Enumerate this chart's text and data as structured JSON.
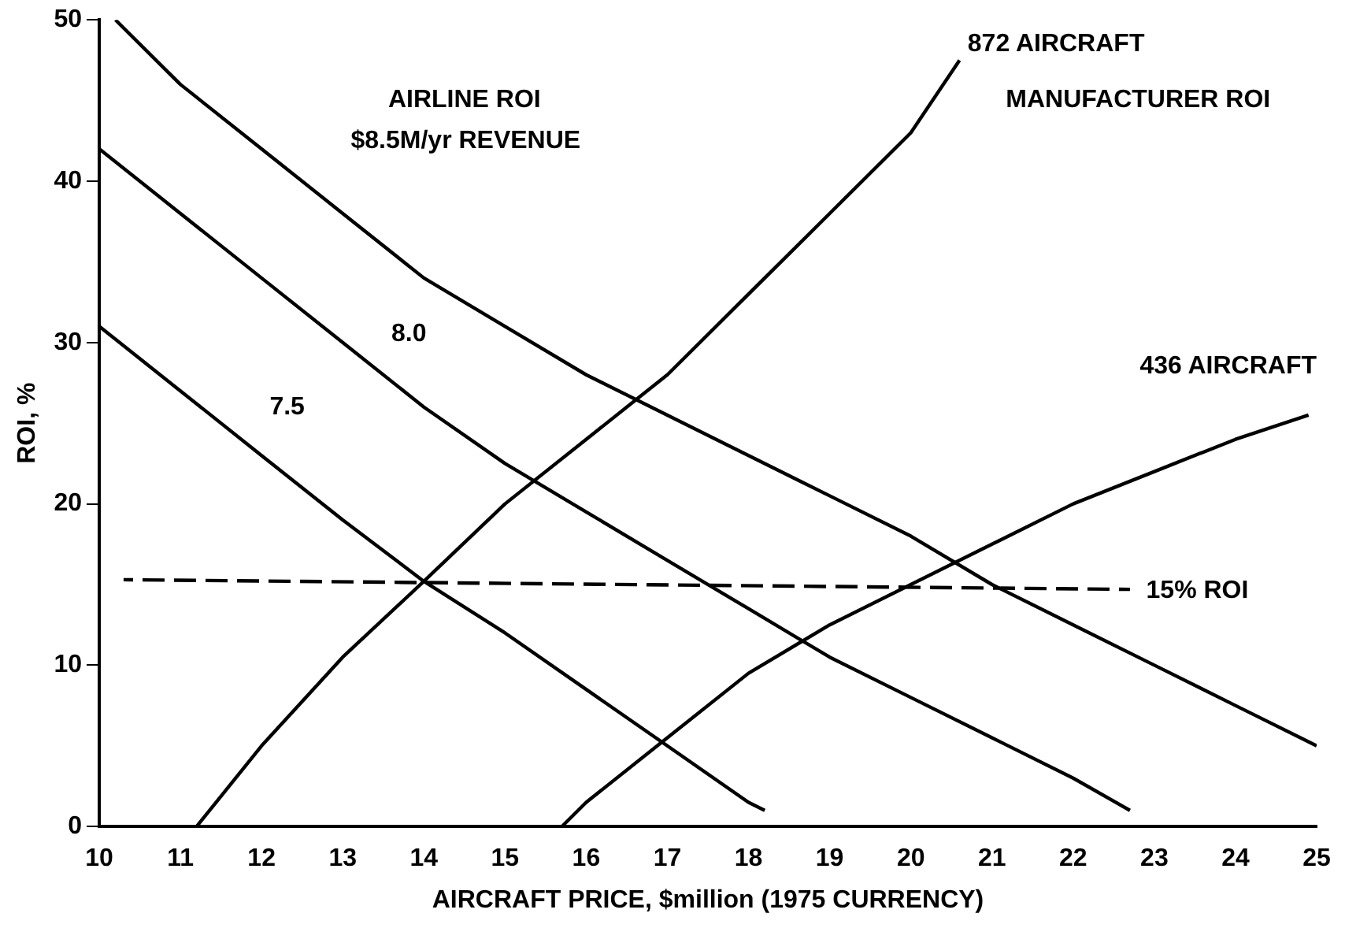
{
  "chart_data": {
    "type": "line",
    "xlabel": "AIRCRAFT PRICE, $million (1975 CURRENCY)",
    "ylabel": "ROI, %",
    "xlim": [
      10,
      25
    ],
    "xticks": [
      10,
      11,
      12,
      13,
      14,
      15,
      16,
      17,
      18,
      19,
      20,
      21,
      22,
      23,
      24,
      25
    ],
    "ylim": [
      0,
      50
    ],
    "yticks": [
      0,
      10,
      20,
      30,
      40,
      50
    ],
    "grid": false,
    "legend": false,
    "marker": "none",
    "annotations": [
      "AIRLINE ROI",
      "MANUFACTURER ROI"
    ],
    "series": [
      {
        "name": "$8.5M/yr REVENUE",
        "color": "#000000",
        "x": [
          10.2,
          11,
          12,
          13,
          14,
          15,
          16,
          17,
          18,
          19,
          20,
          21,
          22,
          23,
          24,
          25
        ],
        "values": [
          50,
          46,
          42,
          38,
          34,
          31,
          28,
          25.5,
          23,
          20.5,
          18,
          15,
          12.5,
          10,
          7.5,
          5
        ]
      },
      {
        "name": "8.0",
        "color": "#000000",
        "x": [
          10,
          11,
          12,
          13,
          14,
          15,
          16,
          17,
          18,
          19,
          20,
          21,
          22,
          22.7
        ],
        "values": [
          42,
          38,
          34,
          30,
          26,
          22.5,
          19.5,
          16.5,
          13.5,
          10.5,
          8,
          5.5,
          3,
          1
        ]
      },
      {
        "name": "7.5",
        "color": "#000000",
        "x": [
          10,
          11,
          12,
          13,
          14,
          15,
          16,
          17,
          18,
          18.2
        ],
        "values": [
          31,
          27,
          23,
          19,
          15.2,
          12,
          8.5,
          5,
          1.5,
          1
        ]
      },
      {
        "name": "872 AIRCRAFT",
        "color": "#000000",
        "x": [
          11.2,
          12,
          13,
          14,
          15,
          16,
          17,
          18,
          19,
          20,
          20.6
        ],
        "values": [
          0,
          5,
          10.5,
          15.2,
          20,
          24,
          28,
          33,
          38,
          43,
          47.5
        ]
      },
      {
        "name": "436 AIRCRAFT",
        "color": "#000000",
        "x": [
          15.7,
          16,
          17,
          18,
          19,
          20,
          21,
          22,
          23,
          24,
          24.9
        ],
        "values": [
          0,
          1.5,
          5.5,
          9.5,
          12.5,
          15,
          17.5,
          20,
          22,
          24,
          25.5
        ]
      },
      {
        "name": "15% ROI",
        "color": "#000000",
        "line_style": "dashed",
        "x": [
          10.3,
          22.7
        ],
        "values": [
          15.3,
          14.7
        ]
      }
    ]
  }
}
